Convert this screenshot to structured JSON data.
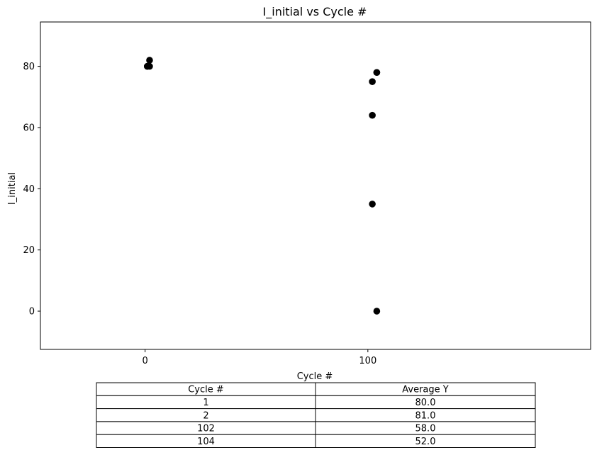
{
  "chart_data": {
    "type": "scatter",
    "title": "I_initial vs Cycle #",
    "xlabel": "Cycle #",
    "ylabel": "I_initial",
    "xlim": [
      -47,
      200
    ],
    "ylim": [
      -12.5,
      94.5
    ],
    "xticks": [
      0,
      100
    ],
    "yticks": [
      0,
      20,
      40,
      60,
      80
    ],
    "marker_color": "#000000",
    "grid": false,
    "points": [
      {
        "x": 1,
        "y": 80
      },
      {
        "x": 1,
        "y": 80
      },
      {
        "x": 2,
        "y": 80
      },
      {
        "x": 2,
        "y": 82
      },
      {
        "x": 102,
        "y": 75
      },
      {
        "x": 102,
        "y": 64
      },
      {
        "x": 102,
        "y": 35
      },
      {
        "x": 104,
        "y": 78
      },
      {
        "x": 104,
        "y": 78
      },
      {
        "x": 104,
        "y": 0
      }
    ],
    "table": {
      "headers": [
        "Cycle #",
        "Average Y"
      ],
      "rows": [
        [
          "1",
          "80.0"
        ],
        [
          "2",
          "81.0"
        ],
        [
          "102",
          "58.0"
        ],
        [
          "104",
          "52.0"
        ]
      ]
    }
  }
}
